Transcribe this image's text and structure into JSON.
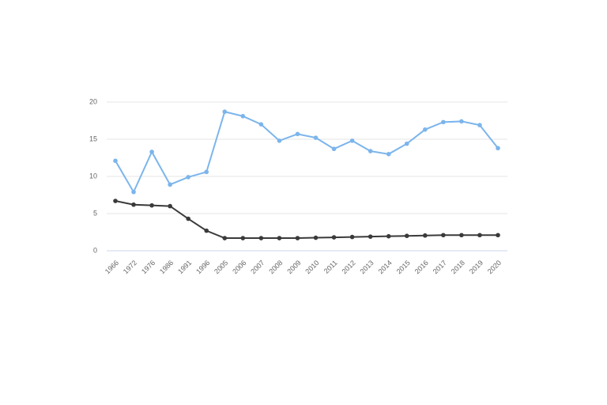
{
  "chart_data": {
    "type": "line",
    "categories": [
      "1966",
      "1972",
      "1976",
      "1986",
      "1991",
      "1996",
      "2005",
      "2006",
      "2007",
      "2008",
      "2009",
      "2010",
      "2011",
      "2012",
      "2013",
      "2014",
      "2015",
      "2016",
      "2017",
      "2018",
      "2019",
      "2020"
    ],
    "series": [
      {
        "color": "#7cb5ec",
        "values": [
          12.1,
          7.9,
          13.3,
          8.9,
          9.9,
          10.6,
          18.7,
          18.1,
          17.0,
          14.8,
          15.7,
          15.2,
          13.7,
          14.8,
          13.4,
          13.0,
          14.4,
          16.3,
          17.3,
          17.4,
          16.9,
          13.8
        ]
      },
      {
        "color": "#3a3a3a",
        "values": [
          6.7,
          6.2,
          6.1,
          6.0,
          4.3,
          2.7,
          1.7,
          1.7,
          1.7,
          1.7,
          1.7,
          1.75,
          1.8,
          1.85,
          1.9,
          1.95,
          2.0,
          2.05,
          2.1,
          2.1,
          2.1,
          2.1
        ]
      }
    ],
    "ylim": [
      0,
      20
    ],
    "yticks": [
      0,
      5,
      10,
      15,
      20
    ],
    "grid": true
  }
}
